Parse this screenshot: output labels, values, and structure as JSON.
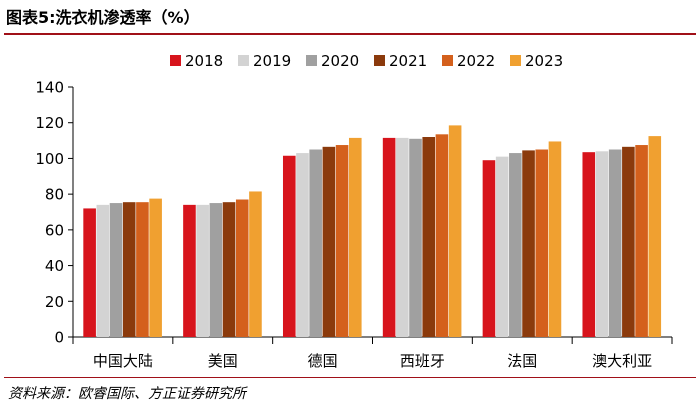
{
  "header": {
    "title": "图表5:洗衣机渗透率（%）"
  },
  "footer": {
    "source": "资料来源：欧睿国际、方正证券研究所"
  },
  "chart_data": {
    "type": "bar",
    "title": "图表5:洗衣机渗透率（%）",
    "xlabel": "",
    "ylabel": "",
    "ylim": [
      0,
      140
    ],
    "yticks": [
      "0",
      "20",
      "40",
      "60",
      "80",
      "100",
      "120",
      "140"
    ],
    "grid": false,
    "legend_position": "top-center",
    "categories": [
      "中国大陆",
      "美国",
      "德国",
      "西班牙",
      "法国",
      "澳大利亚"
    ],
    "series": [
      {
        "name": "2018",
        "color": "#d7141c",
        "values": [
          72,
          74,
          101.5,
          111.5,
          99,
          103.5
        ]
      },
      {
        "name": "2019",
        "color": "#d3d3d3",
        "values": [
          74,
          74,
          103,
          111.5,
          101,
          104
        ]
      },
      {
        "name": "2020",
        "color": "#a0a0a0",
        "values": [
          75,
          75,
          105,
          111,
          103,
          105
        ]
      },
      {
        "name": "2021",
        "color": "#8b3a0c",
        "values": [
          75.5,
          75.5,
          106.5,
          112,
          104.5,
          106.5
        ]
      },
      {
        "name": "2022",
        "color": "#d4601c",
        "values": [
          75.5,
          77,
          107.5,
          113.5,
          105,
          107.5
        ]
      },
      {
        "name": "2023",
        "color": "#f0a030",
        "values": [
          77.5,
          81.5,
          111.5,
          118.5,
          109.5,
          112.5
        ]
      }
    ]
  }
}
